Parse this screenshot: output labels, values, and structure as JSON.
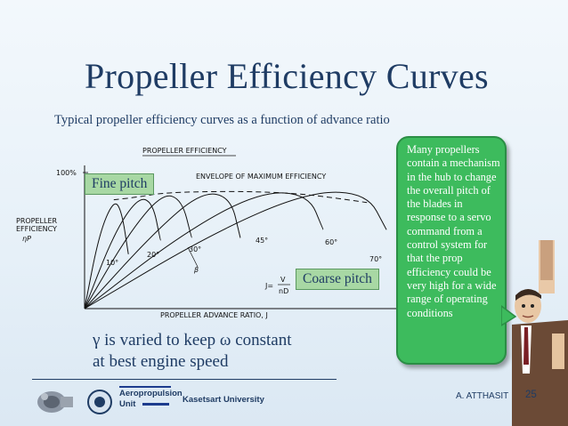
{
  "slide": {
    "title": "Propeller Efficiency Curves",
    "subtitle": "Typical propeller efficiency curves as a function of advance ratio",
    "fine_tag": "Fine pitch",
    "coarse_tag": "Coarse pitch",
    "callout_text": "Many propellers contain a mechanism in the hub to change the overall pitch of the blades in response to a servo command from a control system for that the prop efficiency could be very high for a wide range of operating conditions",
    "note_line1": "γ is varied to keep ω constant",
    "note_line2": "at best engine speed"
  },
  "figure": {
    "chart_title": "PROPELLER EFFICIENCY",
    "envelope_label": "ENVELOPE OF MAXIMUM EFFICIENCY",
    "y_tick_top": "100%",
    "ylabel_line1": "PROPELLER",
    "ylabel_line2": "EFFICIENCY",
    "ylabel_symbol": "ηP",
    "xlabel": "PROPELLER ADVANCE RATIO, J",
    "formula_lhs": "J=",
    "formula_num": "V",
    "formula_den": "nD",
    "beta_label": "β",
    "angle_labels": [
      "10°",
      "20°",
      "30°",
      "45°",
      "60°",
      "70°"
    ]
  },
  "chart_data": {
    "type": "line",
    "title": "PROPELLER EFFICIENCY",
    "xlabel": "PROPELLER ADVANCE RATIO, J",
    "ylabel": "PROPELLER EFFICIENCY ηP",
    "x_ticks_labeled": false,
    "y_tick_labels": [
      "100%"
    ],
    "ylim": [
      0,
      100
    ],
    "series": [
      {
        "name": "10°",
        "x": [
          0,
          0.15,
          0.3,
          0.38,
          0.45
        ],
        "y": [
          0,
          55,
          80,
          72,
          40
        ]
      },
      {
        "name": "20°",
        "x": [
          0,
          0.3,
          0.55,
          0.7,
          0.78
        ],
        "y": [
          0,
          55,
          82,
          78,
          50
        ]
      },
      {
        "name": "30°",
        "x": [
          0,
          0.45,
          0.8,
          1.0,
          1.1
        ],
        "y": [
          0,
          55,
          85,
          80,
          52
        ]
      },
      {
        "name": "45°",
        "x": [
          0,
          0.7,
          1.2,
          1.5,
          1.6
        ],
        "y": [
          0,
          55,
          86,
          82,
          52
        ]
      },
      {
        "name": "60°",
        "x": [
          0,
          1.0,
          1.8,
          2.3,
          2.45
        ],
        "y": [
          0,
          55,
          86,
          84,
          58
        ]
      },
      {
        "name": "70°",
        "x": [
          0,
          1.3,
          2.3,
          2.9,
          3.1
        ],
        "y": [
          0,
          55,
          86,
          85,
          58
        ]
      },
      {
        "name": "ENVELOPE OF MAXIMUM EFFICIENCY",
        "x": [
          0.3,
          0.55,
          0.8,
          1.2,
          1.8,
          2.3,
          2.9
        ],
        "y": [
          80,
          82,
          85,
          86,
          86,
          84,
          78
        ]
      }
    ]
  },
  "footer": {
    "unit_line1": "Aeropropulsion",
    "unit_line2": "Unit",
    "university": "Kasetsart University",
    "author": "A. ATTHASIT",
    "page": "25"
  },
  "colors": {
    "title": "#1f3c64",
    "callout_bg": "#3dbb5d",
    "tag_bg": "#a8d8a4"
  }
}
